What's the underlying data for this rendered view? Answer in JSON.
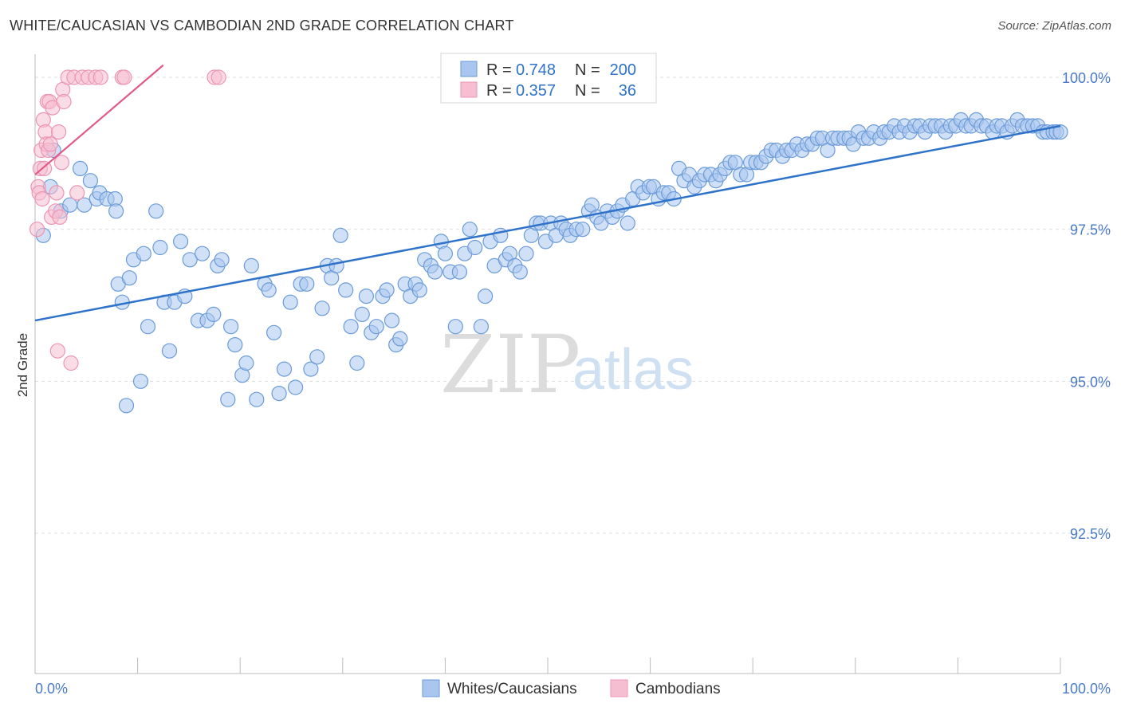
{
  "title": "WHITE/CAUCASIAN VS CAMBODIAN 2ND GRADE CORRELATION CHART",
  "source": "Source: ZipAtlas.com",
  "chart_data": {
    "type": "scatter",
    "ylabel": "2nd Grade",
    "xlim": [
      0,
      100
    ],
    "ylim": [
      90.0,
      100.5
    ],
    "y_ticks": [
      {
        "value": 100.0,
        "label": "100.0%"
      },
      {
        "value": 97.5,
        "label": "97.5%"
      },
      {
        "value": 95.0,
        "label": "95.0%"
      },
      {
        "value": 92.5,
        "label": "92.5%"
      }
    ],
    "x_tick_labels": {
      "left": "0.0%",
      "right": "100.0%"
    },
    "colors": {
      "blue_fill": "#a9c6ee",
      "blue_stroke": "#6b9bd8",
      "blue_line": "#2e72c9",
      "pink_fill": "#f6bfd1",
      "pink_stroke": "#ec95b2",
      "pink_line": "#e05a85",
      "tick_text": "#4a7ac8"
    },
    "legend": {
      "rows": [
        {
          "r_label": "R = ",
          "r_value": "0.748",
          "n_label": "N = ",
          "n_value": "200"
        },
        {
          "r_label": "R = ",
          "r_value": "0.357",
          "n_label": "N = ",
          "n_value": "36"
        }
      ]
    },
    "series": [
      {
        "name": "Whites/Caucasians",
        "trend": {
          "x0": 0,
          "y0": 96.0,
          "x1": 100,
          "y1": 99.2
        },
        "points": [
          [
            0.8,
            97.4
          ],
          [
            1.5,
            98.2
          ],
          [
            1.8,
            98.8
          ],
          [
            2.5,
            97.8
          ],
          [
            3.4,
            97.9
          ],
          [
            4.4,
            98.5
          ],
          [
            4.8,
            97.9
          ],
          [
            5.4,
            98.3
          ],
          [
            6.0,
            98.0
          ],
          [
            6.3,
            98.1
          ],
          [
            7.0,
            98.0
          ],
          [
            7.8,
            98.0
          ],
          [
            7.9,
            97.8
          ],
          [
            8.1,
            96.6
          ],
          [
            8.5,
            96.3
          ],
          [
            8.9,
            94.6
          ],
          [
            9.2,
            96.7
          ],
          [
            9.6,
            97.0
          ],
          [
            10.3,
            95.0
          ],
          [
            10.6,
            97.1
          ],
          [
            11.0,
            95.9
          ],
          [
            11.8,
            97.8
          ],
          [
            12.2,
            97.2
          ],
          [
            12.6,
            96.3
          ],
          [
            13.1,
            95.5
          ],
          [
            13.6,
            96.3
          ],
          [
            14.2,
            97.3
          ],
          [
            14.6,
            96.4
          ],
          [
            15.1,
            97.0
          ],
          [
            15.9,
            96.0
          ],
          [
            16.3,
            97.1
          ],
          [
            16.8,
            96.0
          ],
          [
            17.4,
            96.1
          ],
          [
            17.8,
            96.9
          ],
          [
            18.2,
            97.0
          ],
          [
            18.8,
            94.7
          ],
          [
            19.1,
            95.9
          ],
          [
            19.5,
            95.6
          ],
          [
            20.2,
            95.1
          ],
          [
            20.6,
            95.3
          ],
          [
            21.1,
            96.9
          ],
          [
            21.6,
            94.7
          ],
          [
            22.4,
            96.6
          ],
          [
            22.8,
            96.5
          ],
          [
            23.3,
            95.8
          ],
          [
            23.8,
            94.8
          ],
          [
            24.3,
            95.2
          ],
          [
            24.9,
            96.3
          ],
          [
            25.4,
            94.9
          ],
          [
            25.9,
            96.6
          ],
          [
            26.5,
            96.6
          ],
          [
            26.9,
            95.2
          ],
          [
            27.5,
            95.4
          ],
          [
            28.0,
            96.2
          ],
          [
            28.5,
            96.9
          ],
          [
            28.9,
            96.7
          ],
          [
            29.4,
            96.9
          ],
          [
            29.8,
            97.4
          ],
          [
            30.3,
            96.5
          ],
          [
            30.8,
            95.9
          ],
          [
            31.4,
            95.3
          ],
          [
            31.9,
            96.1
          ],
          [
            32.3,
            96.4
          ],
          [
            32.8,
            95.8
          ],
          [
            33.3,
            95.9
          ],
          [
            33.9,
            96.4
          ],
          [
            34.3,
            96.5
          ],
          [
            34.8,
            96.0
          ],
          [
            35.2,
            95.6
          ],
          [
            35.6,
            95.7
          ],
          [
            36.1,
            96.6
          ],
          [
            36.6,
            96.4
          ],
          [
            37.1,
            96.6
          ],
          [
            37.5,
            96.5
          ],
          [
            38.0,
            97.0
          ],
          [
            38.6,
            96.9
          ],
          [
            39.0,
            96.8
          ],
          [
            39.6,
            97.3
          ],
          [
            40.0,
            97.1
          ],
          [
            40.5,
            96.8
          ],
          [
            41.0,
            95.9
          ],
          [
            41.4,
            96.8
          ],
          [
            41.9,
            97.1
          ],
          [
            42.4,
            97.5
          ],
          [
            42.9,
            97.2
          ],
          [
            43.5,
            95.9
          ],
          [
            43.9,
            96.4
          ],
          [
            44.4,
            97.3
          ],
          [
            44.8,
            96.9
          ],
          [
            45.4,
            97.4
          ],
          [
            45.9,
            97.0
          ],
          [
            46.3,
            97.1
          ],
          [
            46.8,
            96.9
          ],
          [
            47.3,
            96.8
          ],
          [
            47.9,
            97.1
          ],
          [
            48.4,
            97.4
          ],
          [
            48.9,
            97.6
          ],
          [
            49.3,
            97.6
          ],
          [
            49.8,
            97.3
          ],
          [
            50.3,
            97.6
          ],
          [
            50.8,
            97.4
          ],
          [
            51.3,
            97.6
          ],
          [
            51.8,
            97.5
          ],
          [
            52.2,
            97.4
          ],
          [
            52.8,
            97.5
          ],
          [
            53.4,
            97.5
          ],
          [
            54.0,
            97.8
          ],
          [
            54.3,
            97.9
          ],
          [
            54.8,
            97.7
          ],
          [
            55.2,
            97.6
          ],
          [
            55.8,
            97.8
          ],
          [
            56.3,
            97.7
          ],
          [
            56.8,
            97.8
          ],
          [
            57.3,
            97.9
          ],
          [
            57.8,
            97.6
          ],
          [
            58.3,
            98.0
          ],
          [
            58.8,
            98.2
          ],
          [
            59.3,
            98.1
          ],
          [
            59.9,
            98.2
          ],
          [
            60.3,
            98.2
          ],
          [
            60.8,
            98.0
          ],
          [
            61.3,
            98.1
          ],
          [
            61.8,
            98.1
          ],
          [
            62.3,
            98.0
          ],
          [
            62.8,
            98.5
          ],
          [
            63.3,
            98.3
          ],
          [
            63.8,
            98.4
          ],
          [
            64.3,
            98.2
          ],
          [
            64.8,
            98.3
          ],
          [
            65.3,
            98.4
          ],
          [
            65.9,
            98.4
          ],
          [
            66.4,
            98.3
          ],
          [
            66.8,
            98.4
          ],
          [
            67.3,
            98.5
          ],
          [
            67.8,
            98.6
          ],
          [
            68.3,
            98.6
          ],
          [
            68.8,
            98.4
          ],
          [
            69.4,
            98.4
          ],
          [
            69.8,
            98.6
          ],
          [
            70.3,
            98.6
          ],
          [
            70.8,
            98.6
          ],
          [
            71.3,
            98.7
          ],
          [
            71.8,
            98.8
          ],
          [
            72.3,
            98.8
          ],
          [
            72.9,
            98.7
          ],
          [
            73.3,
            98.8
          ],
          [
            73.8,
            98.8
          ],
          [
            74.3,
            98.9
          ],
          [
            74.8,
            98.8
          ],
          [
            75.3,
            98.9
          ],
          [
            75.8,
            98.9
          ],
          [
            76.3,
            99.0
          ],
          [
            76.8,
            99.0
          ],
          [
            77.3,
            98.8
          ],
          [
            77.8,
            99.0
          ],
          [
            78.3,
            99.0
          ],
          [
            78.9,
            99.0
          ],
          [
            79.4,
            99.0
          ],
          [
            79.8,
            98.9
          ],
          [
            80.3,
            99.1
          ],
          [
            80.8,
            99.0
          ],
          [
            81.3,
            99.0
          ],
          [
            81.8,
            99.1
          ],
          [
            82.4,
            99.0
          ],
          [
            82.8,
            99.1
          ],
          [
            83.3,
            99.1
          ],
          [
            83.8,
            99.2
          ],
          [
            84.3,
            99.1
          ],
          [
            84.8,
            99.2
          ],
          [
            85.3,
            99.1
          ],
          [
            85.8,
            99.2
          ],
          [
            86.3,
            99.2
          ],
          [
            86.8,
            99.1
          ],
          [
            87.3,
            99.2
          ],
          [
            87.8,
            99.2
          ],
          [
            88.4,
            99.2
          ],
          [
            88.8,
            99.1
          ],
          [
            89.3,
            99.2
          ],
          [
            89.8,
            99.2
          ],
          [
            90.3,
            99.3
          ],
          [
            90.8,
            99.2
          ],
          [
            91.3,
            99.2
          ],
          [
            91.8,
            99.3
          ],
          [
            92.3,
            99.2
          ],
          [
            92.8,
            99.2
          ],
          [
            93.4,
            99.1
          ],
          [
            93.8,
            99.2
          ],
          [
            94.3,
            99.2
          ],
          [
            94.8,
            99.1
          ],
          [
            95.3,
            99.2
          ],
          [
            95.8,
            99.3
          ],
          [
            96.3,
            99.2
          ],
          [
            96.8,
            99.2
          ],
          [
            97.3,
            99.2
          ],
          [
            97.8,
            99.2
          ],
          [
            98.3,
            99.1
          ],
          [
            98.7,
            99.1
          ],
          [
            99.3,
            99.1
          ],
          [
            99.6,
            99.1
          ],
          [
            100.0,
            99.1
          ]
        ]
      },
      {
        "name": "Cambodians",
        "trend": {
          "x0": 0,
          "y0": 98.4,
          "x1": 12.5,
          "y1": 100.2
        },
        "points": [
          [
            0.2,
            97.5
          ],
          [
            0.3,
            98.2
          ],
          [
            0.4,
            98.1
          ],
          [
            0.5,
            98.5
          ],
          [
            0.6,
            98.8
          ],
          [
            0.7,
            98.0
          ],
          [
            0.8,
            99.3
          ],
          [
            0.9,
            98.5
          ],
          [
            1.0,
            99.1
          ],
          [
            1.1,
            98.9
          ],
          [
            1.2,
            99.6
          ],
          [
            1.3,
            98.8
          ],
          [
            1.4,
            99.6
          ],
          [
            1.5,
            98.9
          ],
          [
            1.6,
            97.7
          ],
          [
            1.7,
            99.5
          ],
          [
            2.0,
            97.8
          ],
          [
            2.1,
            98.1
          ],
          [
            2.2,
            95.5
          ],
          [
            2.3,
            99.1
          ],
          [
            2.4,
            97.7
          ],
          [
            2.6,
            98.6
          ],
          [
            2.7,
            99.8
          ],
          [
            2.8,
            99.6
          ],
          [
            3.2,
            100.0
          ],
          [
            3.5,
            95.3
          ],
          [
            3.8,
            100.0
          ],
          [
            4.1,
            98.1
          ],
          [
            4.6,
            100.0
          ],
          [
            5.2,
            100.0
          ],
          [
            5.9,
            100.0
          ],
          [
            6.4,
            100.0
          ],
          [
            8.5,
            100.0
          ],
          [
            8.7,
            100.0
          ],
          [
            17.5,
            100.0
          ],
          [
            17.9,
            100.0
          ]
        ]
      }
    ]
  }
}
